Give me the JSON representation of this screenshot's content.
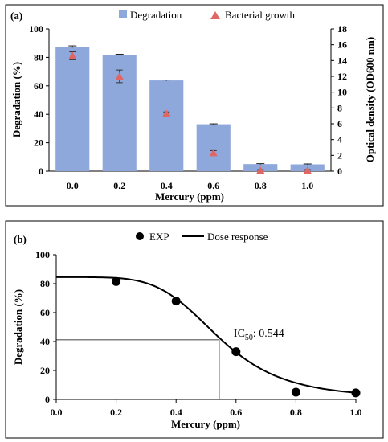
{
  "chart_data": [
    {
      "panel_label": "(a)",
      "type": "bar",
      "categories": [
        "0.0",
        "0.2",
        "0.4",
        "0.6",
        "0.8",
        "1.0"
      ],
      "series": [
        {
          "name": "Degradation",
          "axis": "left",
          "values": [
            87.5,
            81.8,
            63.8,
            33.0,
            5.0,
            4.8
          ],
          "errors": [
            0.6,
            0.4,
            0.3,
            0.3,
            0.3,
            0.3
          ],
          "color": "#8fa8dc"
        },
        {
          "name": "Bacterial growth",
          "axis": "right",
          "type": "scatter",
          "values": [
            14.6,
            12.0,
            7.3,
            2.3,
            0.1,
            0.1
          ],
          "errors": [
            0.5,
            0.8,
            0.2,
            0.3,
            0.1,
            0.1
          ],
          "color": "#e06666"
        }
      ],
      "xlabel": "Mercury (ppm)",
      "ylabel": "Degradation (%)",
      "y2label": "Optical density (OD600 nm)",
      "ylim": [
        0,
        100
      ],
      "y2lim": [
        0,
        18
      ],
      "yticks": [
        "0",
        "20",
        "40",
        "60",
        "80",
        "100"
      ],
      "y2ticks": [
        "0",
        "2",
        "4",
        "6",
        "8",
        "10",
        "12",
        "14",
        "16",
        "18"
      ],
      "legend": "top-center",
      "grid": false
    },
    {
      "panel_label": "(b)",
      "type": "scatter",
      "series": [
        {
          "name": "EXP",
          "x": [
            0.2,
            0.4,
            0.6,
            0.8,
            1.0
          ],
          "y": [
            81.5,
            68.0,
            33.0,
            5.0,
            4.5
          ]
        },
        {
          "name": "Dose response",
          "type": "line",
          "model": "logistic",
          "bottom": 0.8,
          "top": 84.5,
          "ic50": 0.544,
          "hill": 5.0
        }
      ],
      "annotation": {
        "text_main": "IC",
        "text_sub": "50",
        "text_value": ": 0.544",
        "x": 0.544,
        "y": 41.2
      },
      "xlabel": "Mercury (ppm)",
      "ylabel": "Degradation (%)",
      "xlim": [
        0,
        1
      ],
      "ylim": [
        0,
        100
      ],
      "xticks": [
        "0.0",
        "0.2",
        "0.4",
        "0.6",
        "0.8",
        "1.0"
      ],
      "yticks": [
        "0",
        "20",
        "40",
        "60",
        "80",
        "100"
      ],
      "legend": "top-center",
      "grid": false
    }
  ]
}
